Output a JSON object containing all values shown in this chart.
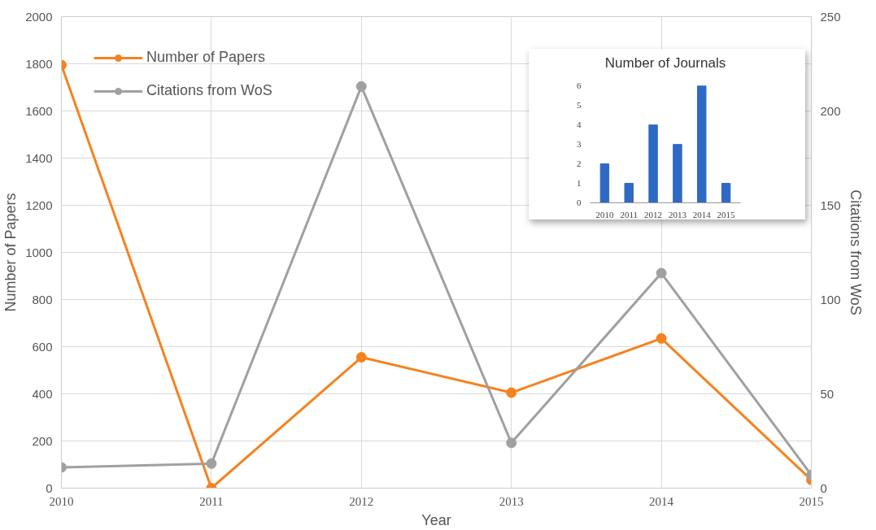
{
  "chart_data": [
    {
      "type": "line",
      "xlabel": "Year",
      "ylabel": "Number of Papers",
      "y2label": "Citations from WoS",
      "x": [
        2010,
        2011,
        2012,
        2013,
        2014,
        2015
      ],
      "xlim": [
        2010,
        2015
      ],
      "xticks": [
        2010,
        2011,
        2012,
        2013,
        2014,
        2015
      ],
      "ylim": [
        0,
        2000
      ],
      "yticks": [
        0,
        200,
        400,
        600,
        800,
        1000,
        1200,
        1400,
        1600,
        1800,
        2000
      ],
      "y2lim": [
        0,
        250
      ],
      "y2ticks": [
        0,
        50,
        100,
        150,
        200,
        250
      ],
      "grid": true,
      "legend": "top left",
      "marker": "circle",
      "series": [
        {
          "name": "Number of Papers",
          "color": "#f5821f",
          "values": [
            1795,
            0,
            555,
            405,
            635,
            35
          ]
        },
        {
          "name": "Citations from WoS",
          "color": "#a0a0a0",
          "axis": "y2",
          "values": [
            11,
            13,
            213,
            24,
            114,
            7
          ]
        }
      ]
    },
    {
      "type": "bar",
      "title": "Number of Journals",
      "categories": [
        "2010",
        "2011",
        "2012",
        "2013",
        "2014",
        "2015"
      ],
      "values": [
        2,
        1,
        4,
        3,
        6,
        1
      ],
      "color": "#2e69c3",
      "ylim": [
        0,
        6.6
      ],
      "yticks": [
        0,
        1,
        2,
        3,
        4,
        5,
        6
      ],
      "grid": false
    }
  ]
}
